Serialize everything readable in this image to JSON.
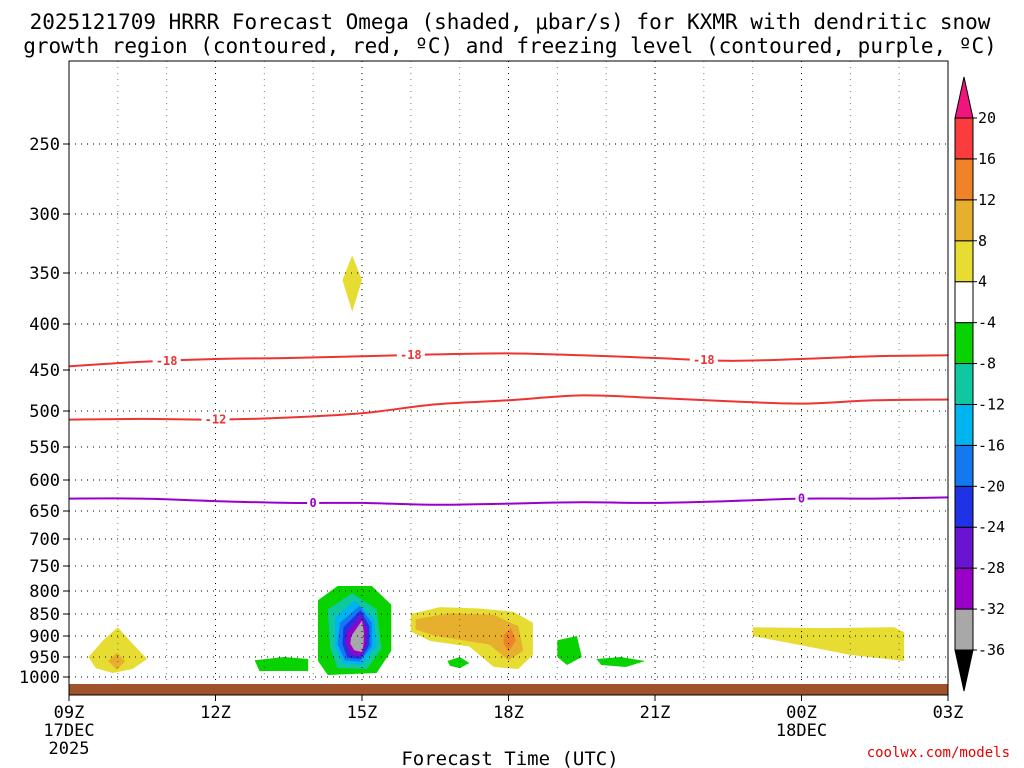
{
  "chart_data": {
    "type": "heatmap",
    "title_line1": "2025121709 HRRR Forecast Omega (shaded, μbar/s) for KXMR with dendritic snow",
    "title_line2": "growth region (contoured, red, ºC) and freezing level (contoured, purple, ºC)",
    "xlabel": "Forecast Time (UTC)",
    "credit": "coolwx.com/models",
    "x_range_hours": [
      0,
      18
    ],
    "y_range_hpa": [
      200,
      1030
    ],
    "x_ticks": [
      {
        "h": 0,
        "label": "09Z",
        "sub1": "17DEC",
        "sub2": "2025"
      },
      {
        "h": 3,
        "label": "12Z",
        "sub1": "",
        "sub2": ""
      },
      {
        "h": 6,
        "label": "15Z",
        "sub1": "",
        "sub2": ""
      },
      {
        "h": 9,
        "label": "18Z",
        "sub1": "",
        "sub2": ""
      },
      {
        "h": 12,
        "label": "21Z",
        "sub1": "",
        "sub2": ""
      },
      {
        "h": 15,
        "label": "00Z",
        "sub1": "18DEC",
        "sub2": ""
      },
      {
        "h": 18,
        "label": "03Z",
        "sub1": "",
        "sub2": ""
      }
    ],
    "y_ticks": [
      250,
      300,
      350,
      400,
      450,
      500,
      550,
      600,
      650,
      700,
      750,
      800,
      850,
      900,
      950,
      1000
    ],
    "colorbar": {
      "levels": [
        -36,
        -32,
        -28,
        -24,
        -20,
        -16,
        -12,
        -8,
        -4,
        4,
        8,
        12,
        16,
        20
      ],
      "bands": [
        {
          "lo": -36,
          "hi": -32,
          "color": "#a8a8a8"
        },
        {
          "lo": -32,
          "hi": -28,
          "color": "#9a00c8"
        },
        {
          "lo": -28,
          "hi": -24,
          "color": "#6a14d2"
        },
        {
          "lo": -24,
          "hi": -20,
          "color": "#2032e6"
        },
        {
          "lo": -20,
          "hi": -16,
          "color": "#1478f0"
        },
        {
          "lo": -16,
          "hi": -12,
          "color": "#00b4f0"
        },
        {
          "lo": -12,
          "hi": -8,
          "color": "#10c8a0"
        },
        {
          "lo": -8,
          "hi": -4,
          "color": "#08d200"
        },
        {
          "lo": -4,
          "hi": 4,
          "color": "#ffffff"
        },
        {
          "lo": 4,
          "hi": 8,
          "color": "#e6dc32"
        },
        {
          "lo": 8,
          "hi": 12,
          "color": "#e6af2d"
        },
        {
          "lo": 12,
          "hi": 16,
          "color": "#f08228"
        },
        {
          "lo": 16,
          "hi": 20,
          "color": "#fa3c3c"
        }
      ],
      "below_color": "#000000",
      "above_color": "#f0147c"
    },
    "contours": [
      {
        "name": "dgz-minus18",
        "color": "#ee3333",
        "label": "-18",
        "label_at_h": [
          2.0,
          7.0,
          13.0
        ],
        "points": [
          [
            0,
            446
          ],
          [
            1.5,
            441
          ],
          [
            3,
            438
          ],
          [
            4.5,
            437
          ],
          [
            6,
            435
          ],
          [
            7.5,
            433
          ],
          [
            9,
            432
          ],
          [
            10.5,
            434
          ],
          [
            12,
            437
          ],
          [
            13.5,
            440
          ],
          [
            15,
            438
          ],
          [
            16.5,
            435
          ],
          [
            18,
            434
          ]
        ]
      },
      {
        "name": "dgz-minus12",
        "color": "#ee3333",
        "label": "-12",
        "label_at_h": [
          3.0
        ],
        "points": [
          [
            0,
            512
          ],
          [
            1.5,
            511
          ],
          [
            3,
            512
          ],
          [
            4.5,
            509
          ],
          [
            6,
            503
          ],
          [
            7.5,
            492
          ],
          [
            9,
            487
          ],
          [
            10.5,
            481
          ],
          [
            12,
            484
          ],
          [
            13.5,
            488
          ],
          [
            15,
            491
          ],
          [
            16.5,
            487
          ],
          [
            18,
            486
          ]
        ]
      },
      {
        "name": "freezing-level",
        "color": "#9900cc",
        "label": "0",
        "label_at_h": [
          5.0,
          15.0
        ],
        "points": [
          [
            0,
            630
          ],
          [
            1.5,
            630
          ],
          [
            3,
            634
          ],
          [
            4.5,
            637
          ],
          [
            6,
            637
          ],
          [
            7.5,
            640
          ],
          [
            9,
            638
          ],
          [
            10.5,
            636
          ],
          [
            12,
            637
          ],
          [
            13.5,
            634
          ],
          [
            15,
            630
          ],
          [
            16.5,
            630
          ],
          [
            18,
            628
          ]
        ]
      }
    ],
    "omega_regions": [
      {
        "name": "yellow-350",
        "value": 4,
        "points": [
          [
            5.8,
            335
          ],
          [
            6.0,
            357
          ],
          [
            5.8,
            388
          ],
          [
            5.6,
            357
          ]
        ]
      },
      {
        "name": "green-400",
        "value": -4,
        "points": [
          [
            10.0,
            390
          ],
          [
            10.9,
            372
          ],
          [
            11.2,
            357
          ],
          [
            11.3,
            392
          ],
          [
            11.3,
            413
          ],
          [
            10.0,
            416
          ]
        ]
      },
      {
        "name": "green-right-mid",
        "value": -4,
        "points": [
          [
            17.98,
            400
          ],
          [
            17.7,
            430
          ],
          [
            17.8,
            480
          ],
          [
            17.98,
            530
          ]
        ]
      },
      {
        "name": "green-650",
        "value": -4,
        "points": [
          [
            8.0,
            590
          ],
          [
            8.3,
            650
          ],
          [
            8.0,
            720
          ],
          [
            7.7,
            650
          ]
        ]
      },
      {
        "name": "yellow-left-low",
        "value": 4,
        "points": [
          [
            0.4,
            950
          ],
          [
            0.7,
            910
          ],
          [
            1.0,
            880
          ],
          [
            1.3,
            918
          ],
          [
            1.6,
            955
          ],
          [
            1.3,
            980
          ],
          [
            0.9,
            990
          ],
          [
            0.55,
            978
          ]
        ]
      },
      {
        "name": "orange-left-low",
        "value": 8,
        "points": [
          [
            0.8,
            960
          ],
          [
            0.98,
            940
          ],
          [
            1.15,
            960
          ],
          [
            0.98,
            982
          ]
        ]
      },
      {
        "name": "green-main-left",
        "value": -4,
        "points": [
          [
            3.0,
            875
          ],
          [
            3.6,
            857
          ],
          [
            4.4,
            860
          ],
          [
            4.9,
            900
          ],
          [
            4.9,
            1005
          ],
          [
            3.4,
            1005
          ],
          [
            3.6,
            935
          ],
          [
            3.3,
            905
          ]
        ]
      },
      {
        "name": "teal-main-left",
        "value": -8,
        "points": [
          [
            3.8,
            958
          ],
          [
            4.4,
            950
          ],
          [
            4.9,
            955
          ],
          [
            4.9,
            985
          ],
          [
            3.9,
            985
          ]
        ]
      },
      {
        "name": "green-15z",
        "value": -4,
        "points": [
          [
            4.9,
            795
          ],
          [
            5.3,
            770
          ],
          [
            6.2,
            768
          ],
          [
            6.7,
            790
          ],
          [
            6.9,
            860
          ],
          [
            6.8,
            950
          ],
          [
            6.4,
            1005
          ],
          [
            4.9,
            1005
          ]
        ]
      },
      {
        "name": "teal-15z",
        "value": -8,
        "points": [
          [
            5.1,
            820
          ],
          [
            5.5,
            790
          ],
          [
            6.2,
            790
          ],
          [
            6.6,
            830
          ],
          [
            6.6,
            935
          ],
          [
            6.3,
            990
          ],
          [
            5.3,
            995
          ],
          [
            5.1,
            960
          ]
        ]
      },
      {
        "name": "cyan-15z",
        "value": -12,
        "points": [
          [
            5.3,
            840
          ],
          [
            5.8,
            805
          ],
          [
            6.3,
            840
          ],
          [
            6.4,
            930
          ],
          [
            6.1,
            980
          ],
          [
            5.5,
            978
          ],
          [
            5.35,
            930
          ]
        ]
      },
      {
        "name": "lightblue-15z",
        "value": -16,
        "points": [
          [
            5.45,
            858
          ],
          [
            5.85,
            820
          ],
          [
            6.25,
            860
          ],
          [
            6.3,
            925
          ],
          [
            6.0,
            970
          ],
          [
            5.6,
            965
          ],
          [
            5.45,
            925
          ]
        ]
      },
      {
        "name": "blue-15z",
        "value": -20,
        "points": [
          [
            5.55,
            870
          ],
          [
            5.95,
            832
          ],
          [
            6.2,
            870
          ],
          [
            6.2,
            925
          ],
          [
            5.95,
            962
          ],
          [
            5.65,
            958
          ],
          [
            5.5,
            920
          ]
        ]
      },
      {
        "name": "indigo-15z",
        "value": -24,
        "points": [
          [
            5.62,
            880
          ],
          [
            5.97,
            842
          ],
          [
            6.15,
            878
          ],
          [
            6.15,
            922
          ],
          [
            5.98,
            955
          ],
          [
            5.7,
            952
          ],
          [
            5.6,
            920
          ]
        ]
      },
      {
        "name": "purple-15z",
        "value": -28,
        "points": [
          [
            5.68,
            888
          ],
          [
            5.98,
            850
          ],
          [
            6.12,
            885
          ],
          [
            6.1,
            920
          ],
          [
            5.98,
            950
          ],
          [
            5.75,
            946
          ],
          [
            5.66,
            918
          ]
        ]
      },
      {
        "name": "gray-15z",
        "value": -32,
        "points": [
          [
            5.72,
            895
          ],
          [
            6.0,
            858
          ],
          [
            6.08,
            890
          ],
          [
            6.06,
            920
          ],
          [
            6.0,
            945
          ],
          [
            5.8,
            940
          ],
          [
            5.7,
            918
          ]
        ]
      },
      {
        "name": "black-15z",
        "value": -36,
        "points": [
          [
            5.78,
            900
          ],
          [
            6.0,
            865
          ],
          [
            6.04,
            895
          ],
          [
            6.03,
            920
          ],
          [
            6.0,
            938
          ],
          [
            5.84,
            934
          ],
          [
            5.76,
            918
          ]
        ]
      },
      {
        "name": "yellow-17z",
        "value": 4,
        "points": [
          [
            7.0,
            850
          ],
          [
            7.6,
            835
          ],
          [
            8.4,
            838
          ],
          [
            9.1,
            845
          ],
          [
            9.5,
            870
          ],
          [
            9.5,
            945
          ],
          [
            9.2,
            980
          ],
          [
            8.7,
            975
          ],
          [
            8.2,
            925
          ],
          [
            7.4,
            912
          ],
          [
            7.0,
            890
          ]
        ]
      },
      {
        "name": "gold-17z",
        "value": 8,
        "points": [
          [
            7.1,
            862
          ],
          [
            7.8,
            848
          ],
          [
            8.7,
            852
          ],
          [
            9.2,
            878
          ],
          [
            9.3,
            935
          ],
          [
            9.0,
            958
          ],
          [
            8.6,
            920
          ],
          [
            7.5,
            900
          ],
          [
            7.1,
            885
          ]
        ]
      },
      {
        "name": "orange-18z",
        "value": 12,
        "points": [
          [
            8.9,
            898
          ],
          [
            9.05,
            882
          ],
          [
            9.15,
            910
          ],
          [
            9.0,
            938
          ],
          [
            8.9,
            918
          ]
        ]
      },
      {
        "name": "green-17z-low",
        "value": -4,
        "points": [
          [
            7.4,
            960
          ],
          [
            7.7,
            945
          ],
          [
            8.2,
            940
          ],
          [
            8.5,
            965
          ],
          [
            8.2,
            990
          ],
          [
            7.8,
            992
          ],
          [
            7.4,
            980
          ]
        ]
      },
      {
        "name": "teal-17z-low",
        "value": -8,
        "points": [
          [
            7.75,
            960
          ],
          [
            8.0,
            950
          ],
          [
            8.2,
            965
          ],
          [
            8.0,
            978
          ],
          [
            7.8,
            972
          ]
        ]
      },
      {
        "name": "green-20z",
        "value": -4,
        "points": [
          [
            9.8,
            875
          ],
          [
            10.4,
            862
          ],
          [
            11.0,
            905
          ],
          [
            12.0,
            898
          ],
          [
            12.9,
            910
          ],
          [
            13.1,
            950
          ],
          [
            12.7,
            985
          ],
          [
            11.5,
            975
          ],
          [
            10.6,
            980
          ],
          [
            9.8,
            985
          ],
          [
            9.7,
            920
          ]
        ]
      },
      {
        "name": "teal-20z",
        "value": -8,
        "points": [
          [
            10.0,
            910
          ],
          [
            10.4,
            900
          ],
          [
            10.5,
            950
          ],
          [
            10.2,
            970
          ],
          [
            10.0,
            950
          ]
        ]
      },
      {
        "name": "teal-21z",
        "value": -8,
        "points": [
          [
            10.8,
            955
          ],
          [
            11.3,
            950
          ],
          [
            11.8,
            960
          ],
          [
            11.4,
            975
          ],
          [
            10.9,
            970
          ]
        ]
      },
      {
        "name": "yellow-right-low",
        "value": 4,
        "points": [
          [
            14.0,
            880
          ],
          [
            15.5,
            882
          ],
          [
            16.9,
            880
          ],
          [
            17.1,
            892
          ],
          [
            17.1,
            960
          ],
          [
            16.0,
            945
          ],
          [
            14.9,
            920
          ],
          [
            14.0,
            900
          ]
        ]
      },
      {
        "name": "green-right-low",
        "value": -4,
        "points": [
          [
            17.9,
            950
          ],
          [
            17.99,
            930
          ],
          [
            17.99,
            990
          ],
          [
            17.9,
            985
          ]
        ]
      }
    ]
  }
}
